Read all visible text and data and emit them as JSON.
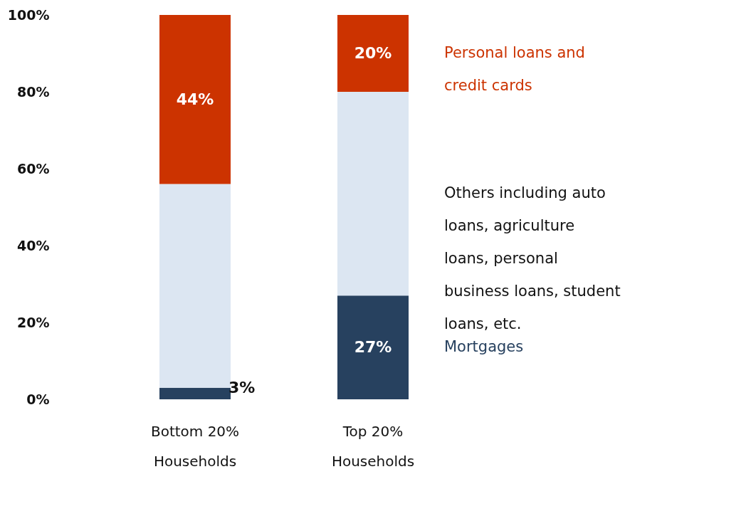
{
  "chart_data": {
    "type": "bar",
    "stacked": true,
    "categories": [
      "Bottom 20% Households",
      "Top 20% Households"
    ],
    "series": [
      {
        "name": "Mortgages",
        "color": "#27415f",
        "values": [
          3,
          27
        ],
        "value_labels": [
          "3%",
          "27%"
        ]
      },
      {
        "name": "Others including auto loans, agriculture loans, personal business loans, student loans, etc.",
        "color": "#dce6f2",
        "values": [
          53,
          53
        ]
      },
      {
        "name": "Personal loans and credit cards",
        "color": "#cc3300",
        "values": [
          44,
          20
        ],
        "value_labels": [
          "44%",
          "20%"
        ]
      }
    ],
    "ylim": [
      0,
      100
    ],
    "yticks": [
      {
        "value": 0,
        "label": "0%"
      },
      {
        "value": 20,
        "label": "20%"
      },
      {
        "value": 40,
        "label": "40%"
      },
      {
        "value": 60,
        "label": "60%"
      },
      {
        "value": 80,
        "label": "80%"
      },
      {
        "value": 100,
        "label": "100%"
      }
    ]
  }
}
